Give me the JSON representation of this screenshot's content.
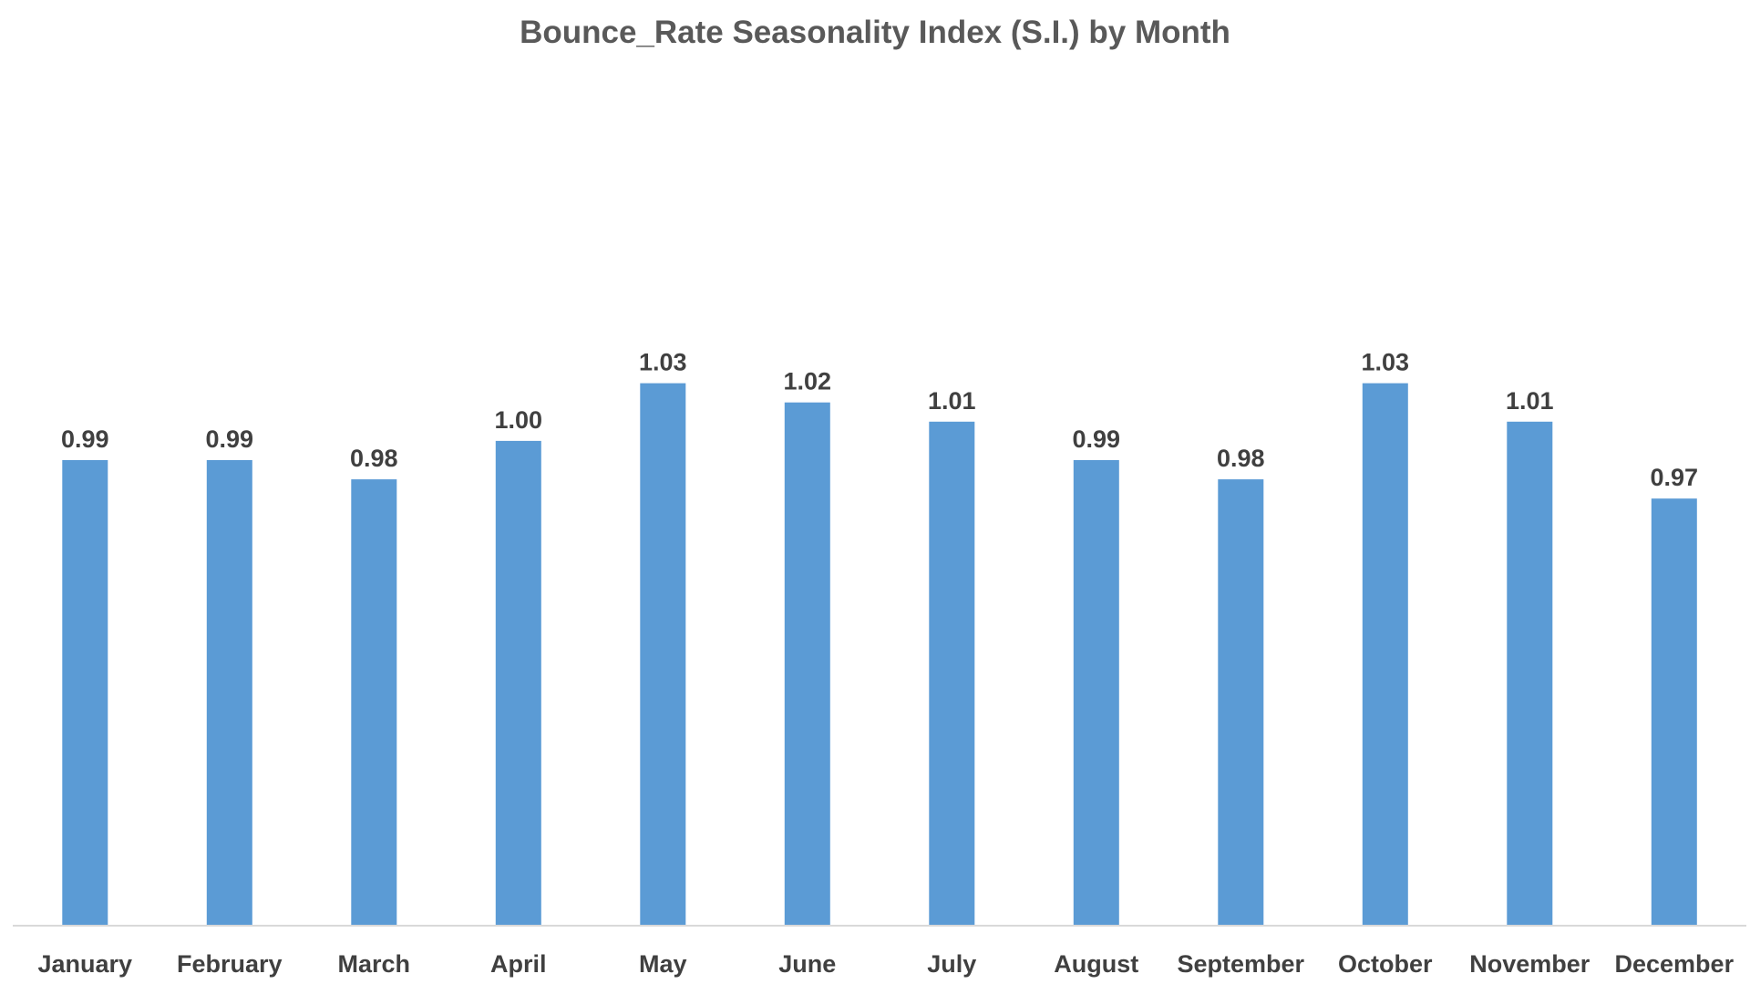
{
  "chart_data": {
    "type": "bar",
    "title": "Bounce_Rate Seasonality Index (S.I.) by Month",
    "categories": [
      "January",
      "February",
      "March",
      "April",
      "May",
      "June",
      "July",
      "August",
      "September",
      "October",
      "November",
      "December"
    ],
    "values": [
      0.99,
      0.99,
      0.98,
      1.0,
      1.03,
      1.02,
      1.01,
      0.99,
      0.98,
      1.03,
      1.01,
      0.97
    ],
    "value_labels": [
      "0.99",
      "0.99",
      "0.98",
      "1.00",
      "1.03",
      "1.02",
      "1.01",
      "0.99",
      "0.98",
      "1.03",
      "1.01",
      "0.97"
    ],
    "xlabel": "",
    "ylabel": "",
    "bar_color": "#5B9BD5",
    "grid": false,
    "legend": "none"
  }
}
